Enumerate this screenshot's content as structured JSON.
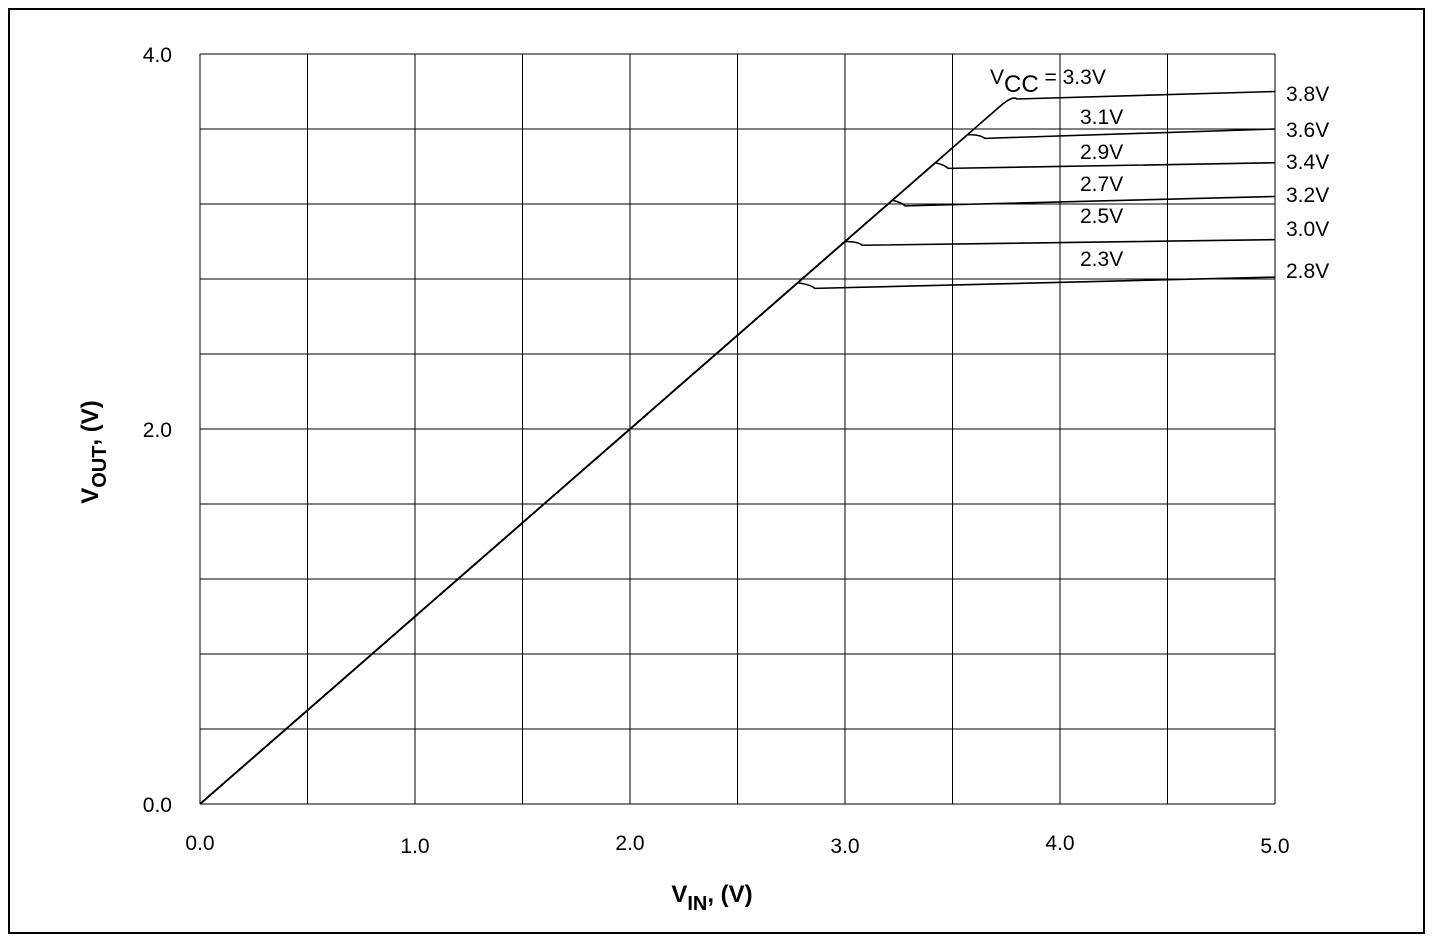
{
  "chart_data": {
    "type": "line",
    "xlabel": {
      "main": "V",
      "sub": "IN",
      "suffix": ", (V)"
    },
    "ylabel": {
      "main": "V",
      "sub": "OUT",
      "suffix": ", (V)"
    },
    "xlim": [
      0,
      5
    ],
    "ylim": [
      0,
      4
    ],
    "x_ticks": [
      "0.0",
      "1.0",
      "2.0",
      "3.0",
      "4.0",
      "5.0"
    ],
    "y_ticks": [
      "0.0",
      "2.0",
      "4.0"
    ],
    "grid": true,
    "series_label_prefix": {
      "main": "V",
      "sub": "CC",
      "suffix": " = "
    },
    "series": [
      {
        "name": "3.3V",
        "end_label": "3.8V",
        "values": [
          [
            0,
            0
          ],
          [
            3.72,
            3.72
          ],
          [
            3.8,
            3.76
          ],
          [
            5.0,
            3.8
          ]
        ]
      },
      {
        "name": "3.1V",
        "end_label": "3.6V",
        "values": [
          [
            0,
            0
          ],
          [
            3.57,
            3.57
          ],
          [
            3.65,
            3.55
          ],
          [
            5.0,
            3.6
          ]
        ]
      },
      {
        "name": "2.9V",
        "end_label": "3.4V",
        "values": [
          [
            0,
            0
          ],
          [
            3.42,
            3.42
          ],
          [
            3.48,
            3.39
          ],
          [
            5.0,
            3.42
          ]
        ]
      },
      {
        "name": "2.7V",
        "end_label": "3.2V",
        "values": [
          [
            0,
            0
          ],
          [
            3.22,
            3.22
          ],
          [
            3.28,
            3.19
          ],
          [
            5.0,
            3.24
          ]
        ]
      },
      {
        "name": "2.5V",
        "end_label": "3.0V",
        "values": [
          [
            0,
            0
          ],
          [
            3.0,
            3.0
          ],
          [
            3.08,
            2.98
          ],
          [
            5.0,
            3.01
          ]
        ]
      },
      {
        "name": "2.3V",
        "end_label": "2.8V",
        "values": [
          [
            0,
            0
          ],
          [
            2.78,
            2.78
          ],
          [
            2.86,
            2.75
          ],
          [
            5.0,
            2.81
          ]
        ]
      }
    ]
  }
}
